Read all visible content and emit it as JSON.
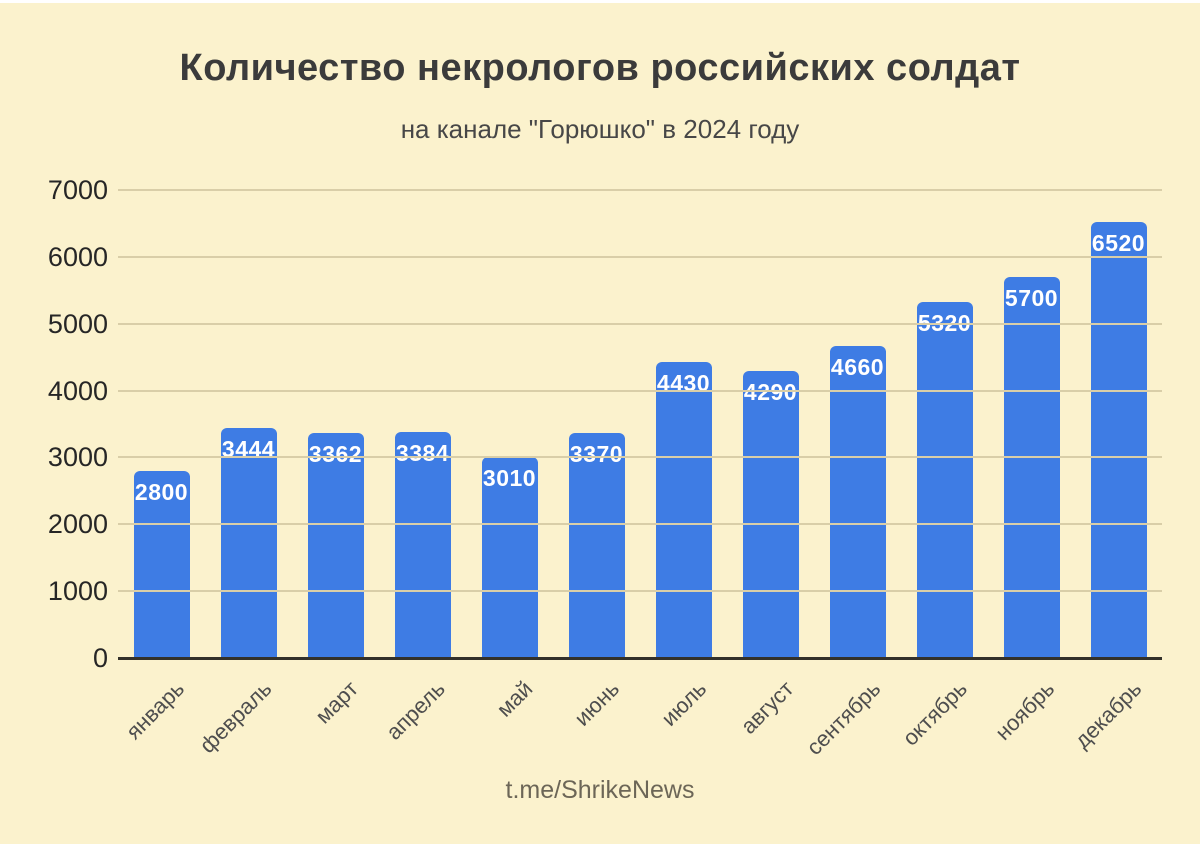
{
  "chart_data": {
    "type": "bar",
    "title": "Количество некрологов российских солдат",
    "subtitle": "на канале \"Горюшко\" в 2024 году",
    "categories": [
      "январь",
      "февраль",
      "март",
      "апрель",
      "май",
      "июнь",
      "июль",
      "август",
      "сентябрь",
      "октябрь",
      "ноябрь",
      "декабрь"
    ],
    "values": [
      2800,
      3444,
      3362,
      3384,
      3010,
      3370,
      4430,
      4290,
      4660,
      5320,
      5700,
      6520
    ],
    "xlabel": "",
    "ylabel": "",
    "ylim": [
      0,
      7000
    ],
    "yticks": [
      0,
      1000,
      2000,
      3000,
      4000,
      5000,
      6000,
      7000
    ],
    "grid": true,
    "legend": "none",
    "colors": {
      "background": "#FBF2CD",
      "bar": "#3E7CE4",
      "value_label": "#FFFFFF",
      "gridline": "#D9CEA8",
      "axis_line": "#33312A",
      "title_text": "#3B3B3B",
      "tick_text": "#262626"
    }
  },
  "footer": {
    "watermark": "t.me/ShrikeNews"
  }
}
